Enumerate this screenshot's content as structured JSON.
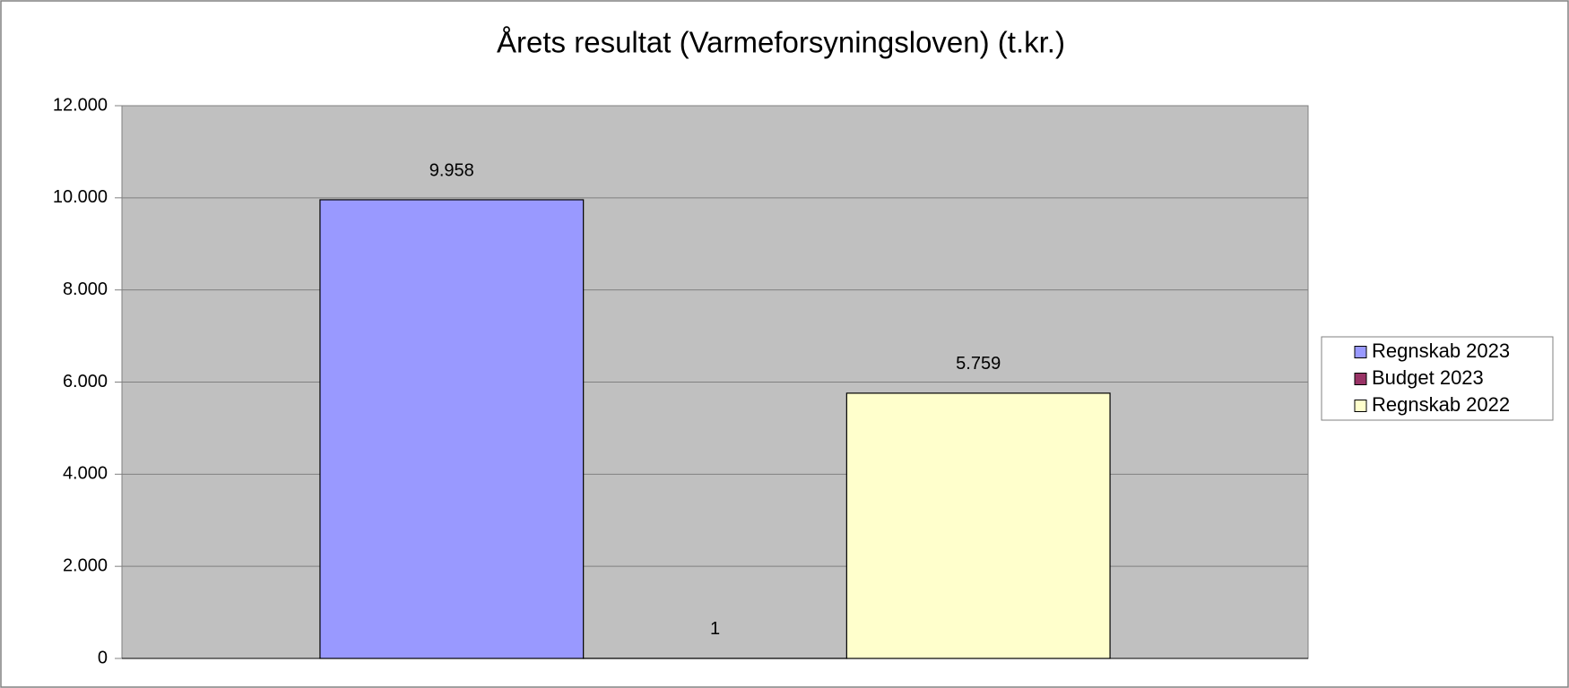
{
  "chart_data": {
    "type": "bar",
    "title": "Årets resultat (Varmeforsyningsloven)  (t.kr.)",
    "categories": [
      null
    ],
    "series": [
      {
        "name": "Regnskab 2023",
        "color": "#9999ff",
        "values": [
          9958
        ],
        "value_labels": [
          "9.958"
        ]
      },
      {
        "name": "Budget 2023",
        "color": "#993366",
        "values": [
          1
        ],
        "value_labels": [
          "1"
        ]
      },
      {
        "name": "Regnskab 2022",
        "color": "#ffffcc",
        "values": [
          5759
        ],
        "value_labels": [
          "5.759"
        ]
      }
    ],
    "ylim": [
      0,
      12000
    ],
    "yticks": [
      0,
      {
        "value": 2000,
        "label": "2.000"
      },
      {
        "value": 4000,
        "label": "4.000"
      },
      {
        "value": 6000,
        "label": "6.000"
      },
      {
        "value": 8000,
        "label": "8.000"
      },
      {
        "value": 10000,
        "label": "10.000"
      },
      {
        "value": 12000,
        "label": "12.000"
      }
    ],
    "grid": true,
    "legend": "right"
  }
}
